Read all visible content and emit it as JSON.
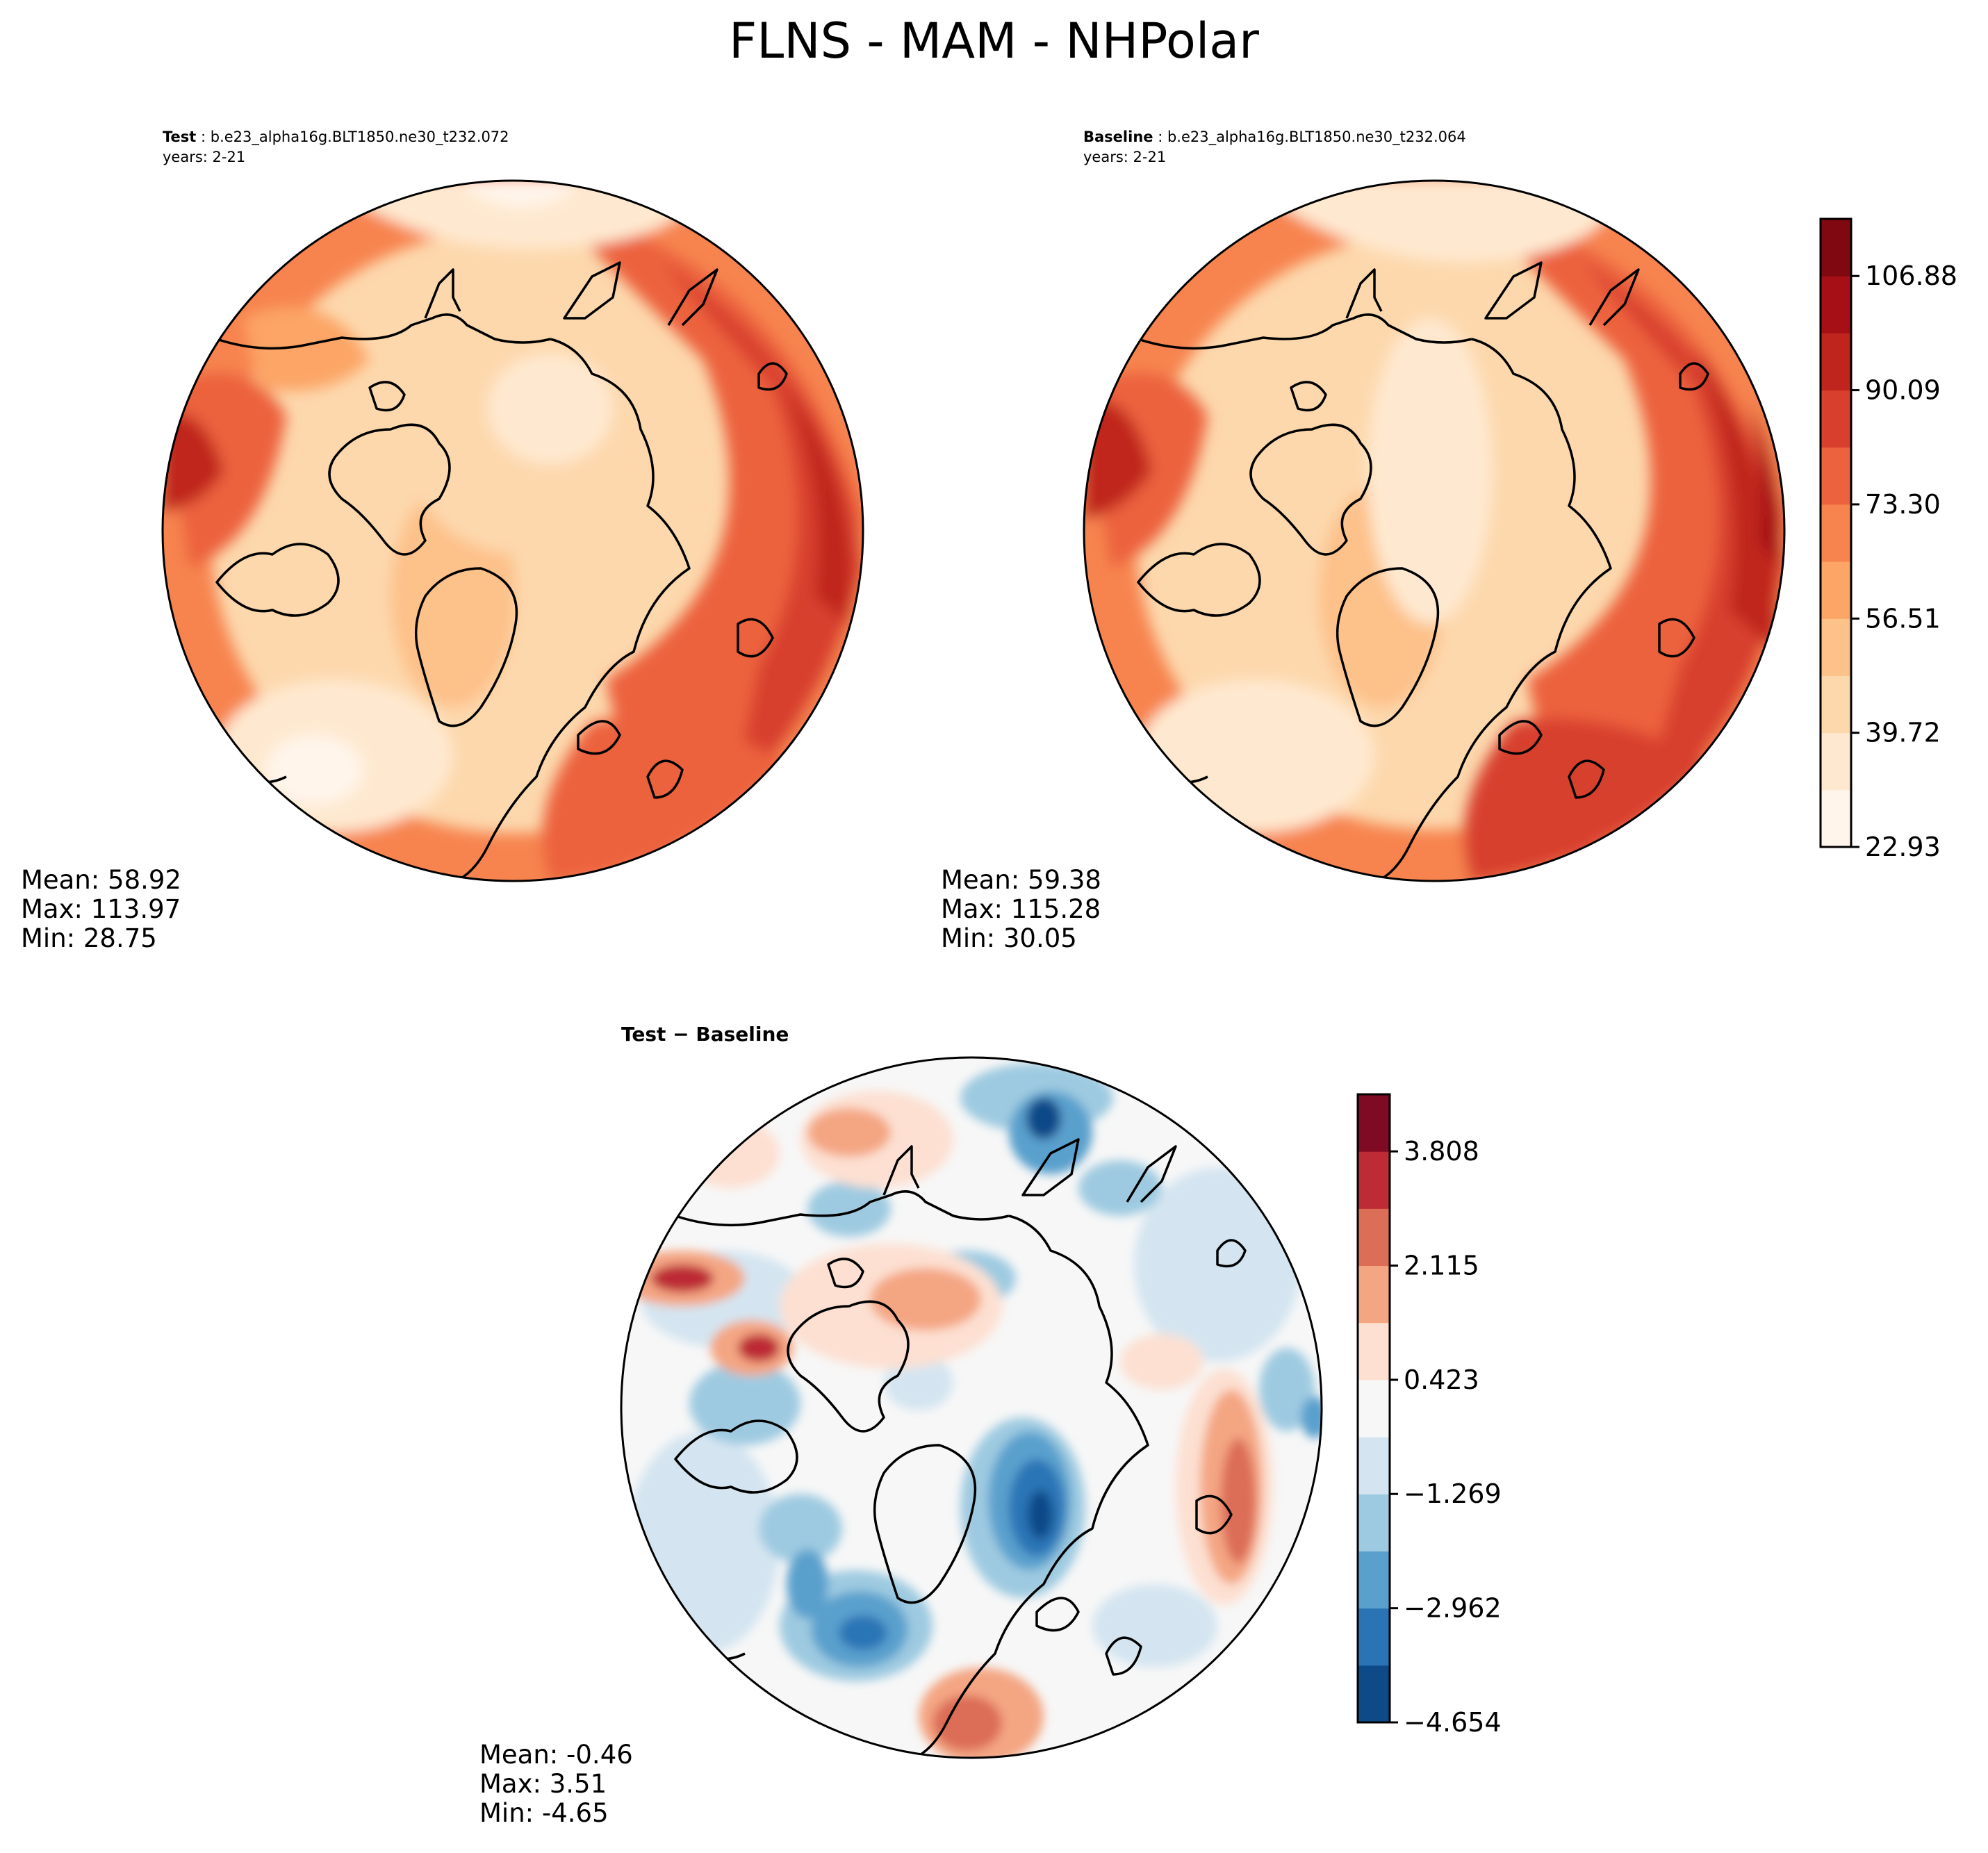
{
  "title": "FLNS - MAM - NHPolar",
  "panels": [
    {
      "label": "Test",
      "case": " : b.e23_alpha16g.BLT1850.ne30_t232.072",
      "years": "years: 2-21",
      "stats": {
        "mean": "Mean: 58.92",
        "max": "Max: 113.97",
        "min": "Min: 28.75"
      }
    },
    {
      "label": "Baseline",
      "case": " : b.e23_alpha16g.BLT1850.ne30_t232.064",
      "years": "years: 2-21",
      "stats": {
        "mean": "Mean: 59.38",
        "max": "Max: 115.28",
        "min": "Min: 30.05"
      }
    },
    {
      "label": "Test − Baseline",
      "stats": {
        "mean": "Mean: -0.46",
        "max": "Max:  3.51",
        "min": "Min: -4.65"
      }
    }
  ],
  "chart_data": [
    {
      "type": "heatmap",
      "projection": "north-polar-stereographic",
      "panels": [
        "Test",
        "Baseline"
      ],
      "colorbar": {
        "cmap": "Reds",
        "min": 22.93,
        "max": 115.28,
        "levels": 11,
        "ticks": [
          22.93,
          39.72,
          56.51,
          73.3,
          90.09,
          106.88
        ],
        "tick_labels": [
          "22.93",
          "39.72",
          "56.51",
          "73.30",
          "90.09",
          "106.88"
        ],
        "colors": [
          "#fff5eb",
          "#fee9d0",
          "#fdd8ad",
          "#fdc18a",
          "#fca566",
          "#f7844f",
          "#ec623e",
          "#d8402d",
          "#c0251d",
          "#a50f15",
          "#800810"
        ]
      }
    },
    {
      "type": "heatmap",
      "projection": "north-polar-stereographic",
      "panels": [
        "Test − Baseline"
      ],
      "colorbar": {
        "cmap": "RdBu_r",
        "min": -4.654,
        "max": 4.654,
        "levels": 11,
        "ticks": [
          -4.654,
          -2.962,
          -1.269,
          0.423,
          2.115,
          3.808
        ],
        "tick_labels": [
          "−4.654",
          "−2.962",
          "−1.269",
          "0.423",
          "2.115",
          "3.808"
        ],
        "colors": [
          "#0e4a88",
          "#2a74b6",
          "#5aa0cd",
          "#9ecae1",
          "#d4e5f1",
          "#f7f7f7",
          "#fde0d2",
          "#f4a683",
          "#dc6d56",
          "#bd2c34",
          "#7f0a24"
        ]
      }
    }
  ]
}
